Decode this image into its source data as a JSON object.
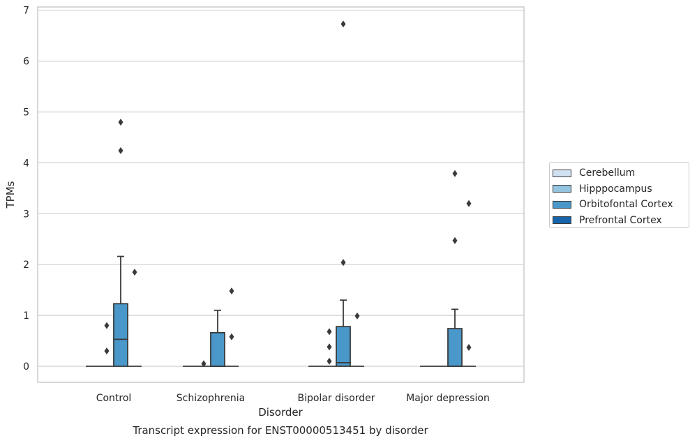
{
  "chart_data": {
    "type": "box",
    "title": "",
    "caption": "Transcript expression for ENST00000513451 by disorder",
    "xlabel": "Disorder",
    "ylabel": "TPMs",
    "categories": [
      "Control",
      "Schizophrenia",
      "Bipolar disorder",
      "Major depression"
    ],
    "yticks": [
      "0",
      "1",
      "2",
      "3",
      "4",
      "5",
      "6",
      "7"
    ],
    "ylim": [
      -0.32,
      7.07
    ],
    "grid": "horizontal",
    "legend_position": "right",
    "series": [
      {
        "name": "Cerebellum",
        "color": "#d0e1f2",
        "boxes": [
          {
            "category": "Control",
            "q1": 0,
            "median": 0,
            "q3": 0,
            "whisker_low": 0,
            "whisker_high": 0,
            "outliers": []
          },
          {
            "category": "Schizophrenia",
            "q1": 0,
            "median": 0,
            "q3": 0,
            "whisker_low": 0,
            "whisker_high": 0,
            "outliers": []
          },
          {
            "category": "Bipolar disorder",
            "q1": 0,
            "median": 0,
            "q3": 0,
            "whisker_low": 0,
            "whisker_high": 0,
            "outliers": []
          },
          {
            "category": "Major depression",
            "q1": 0,
            "median": 0,
            "q3": 0,
            "whisker_low": 0,
            "whisker_high": 0,
            "outliers": []
          }
        ]
      },
      {
        "name": "Hipppocampus",
        "color": "#94c4df",
        "boxes": [
          {
            "category": "Control",
            "q1": 0,
            "median": 0,
            "q3": 0,
            "whisker_low": 0,
            "whisker_high": 0,
            "outliers": [
              0.3,
              0.8
            ]
          },
          {
            "category": "Schizophrenia",
            "q1": 0,
            "median": 0,
            "q3": 0,
            "whisker_low": 0,
            "whisker_high": 0,
            "outliers": [
              0.05
            ]
          },
          {
            "category": "Bipolar disorder",
            "q1": 0,
            "median": 0,
            "q3": 0,
            "whisker_low": 0,
            "whisker_high": 0,
            "outliers": [
              0.1,
              0.38,
              0.68
            ]
          },
          {
            "category": "Major depression",
            "q1": 0,
            "median": 0,
            "q3": 0,
            "whisker_low": 0,
            "whisker_high": 0,
            "outliers": []
          }
        ]
      },
      {
        "name": "Orbitofontal Cortex",
        "color": "#4a98c9",
        "boxes": [
          {
            "category": "Control",
            "q1": 0,
            "median": 0.53,
            "q3": 1.23,
            "whisker_low": 0,
            "whisker_high": 2.16,
            "outliers": [
              4.24,
              4.8
            ]
          },
          {
            "category": "Schizophrenia",
            "q1": 0,
            "median": 0,
            "q3": 0.66,
            "whisker_low": 0,
            "whisker_high": 1.1,
            "outliers": []
          },
          {
            "category": "Bipolar disorder",
            "q1": 0,
            "median": 0.07,
            "q3": 0.78,
            "whisker_low": 0,
            "whisker_high": 1.3,
            "outliers": [
              2.04,
              6.73
            ]
          },
          {
            "category": "Major depression",
            "q1": 0,
            "median": 0,
            "q3": 0.74,
            "whisker_low": 0,
            "whisker_high": 1.12,
            "outliers": [
              2.47,
              3.79
            ]
          }
        ]
      },
      {
        "name": "Prefrontal Cortex",
        "color": "#1764ab",
        "boxes": [
          {
            "category": "Control",
            "q1": 0,
            "median": 0,
            "q3": 0,
            "whisker_low": 0,
            "whisker_high": 0,
            "outliers": [
              1.85
            ]
          },
          {
            "category": "Schizophrenia",
            "q1": 0,
            "median": 0,
            "q3": 0,
            "whisker_low": 0,
            "whisker_high": 0,
            "outliers": [
              0.58,
              1.48
            ]
          },
          {
            "category": "Bipolar disorder",
            "q1": 0,
            "median": 0,
            "q3": 0,
            "whisker_low": 0,
            "whisker_high": 0,
            "outliers": [
              0.99
            ]
          },
          {
            "category": "Major depression",
            "q1": 0,
            "median": 0,
            "q3": 0,
            "whisker_low": 0,
            "whisker_high": 0,
            "outliers": [
              0.37,
              3.2
            ]
          }
        ]
      }
    ]
  }
}
